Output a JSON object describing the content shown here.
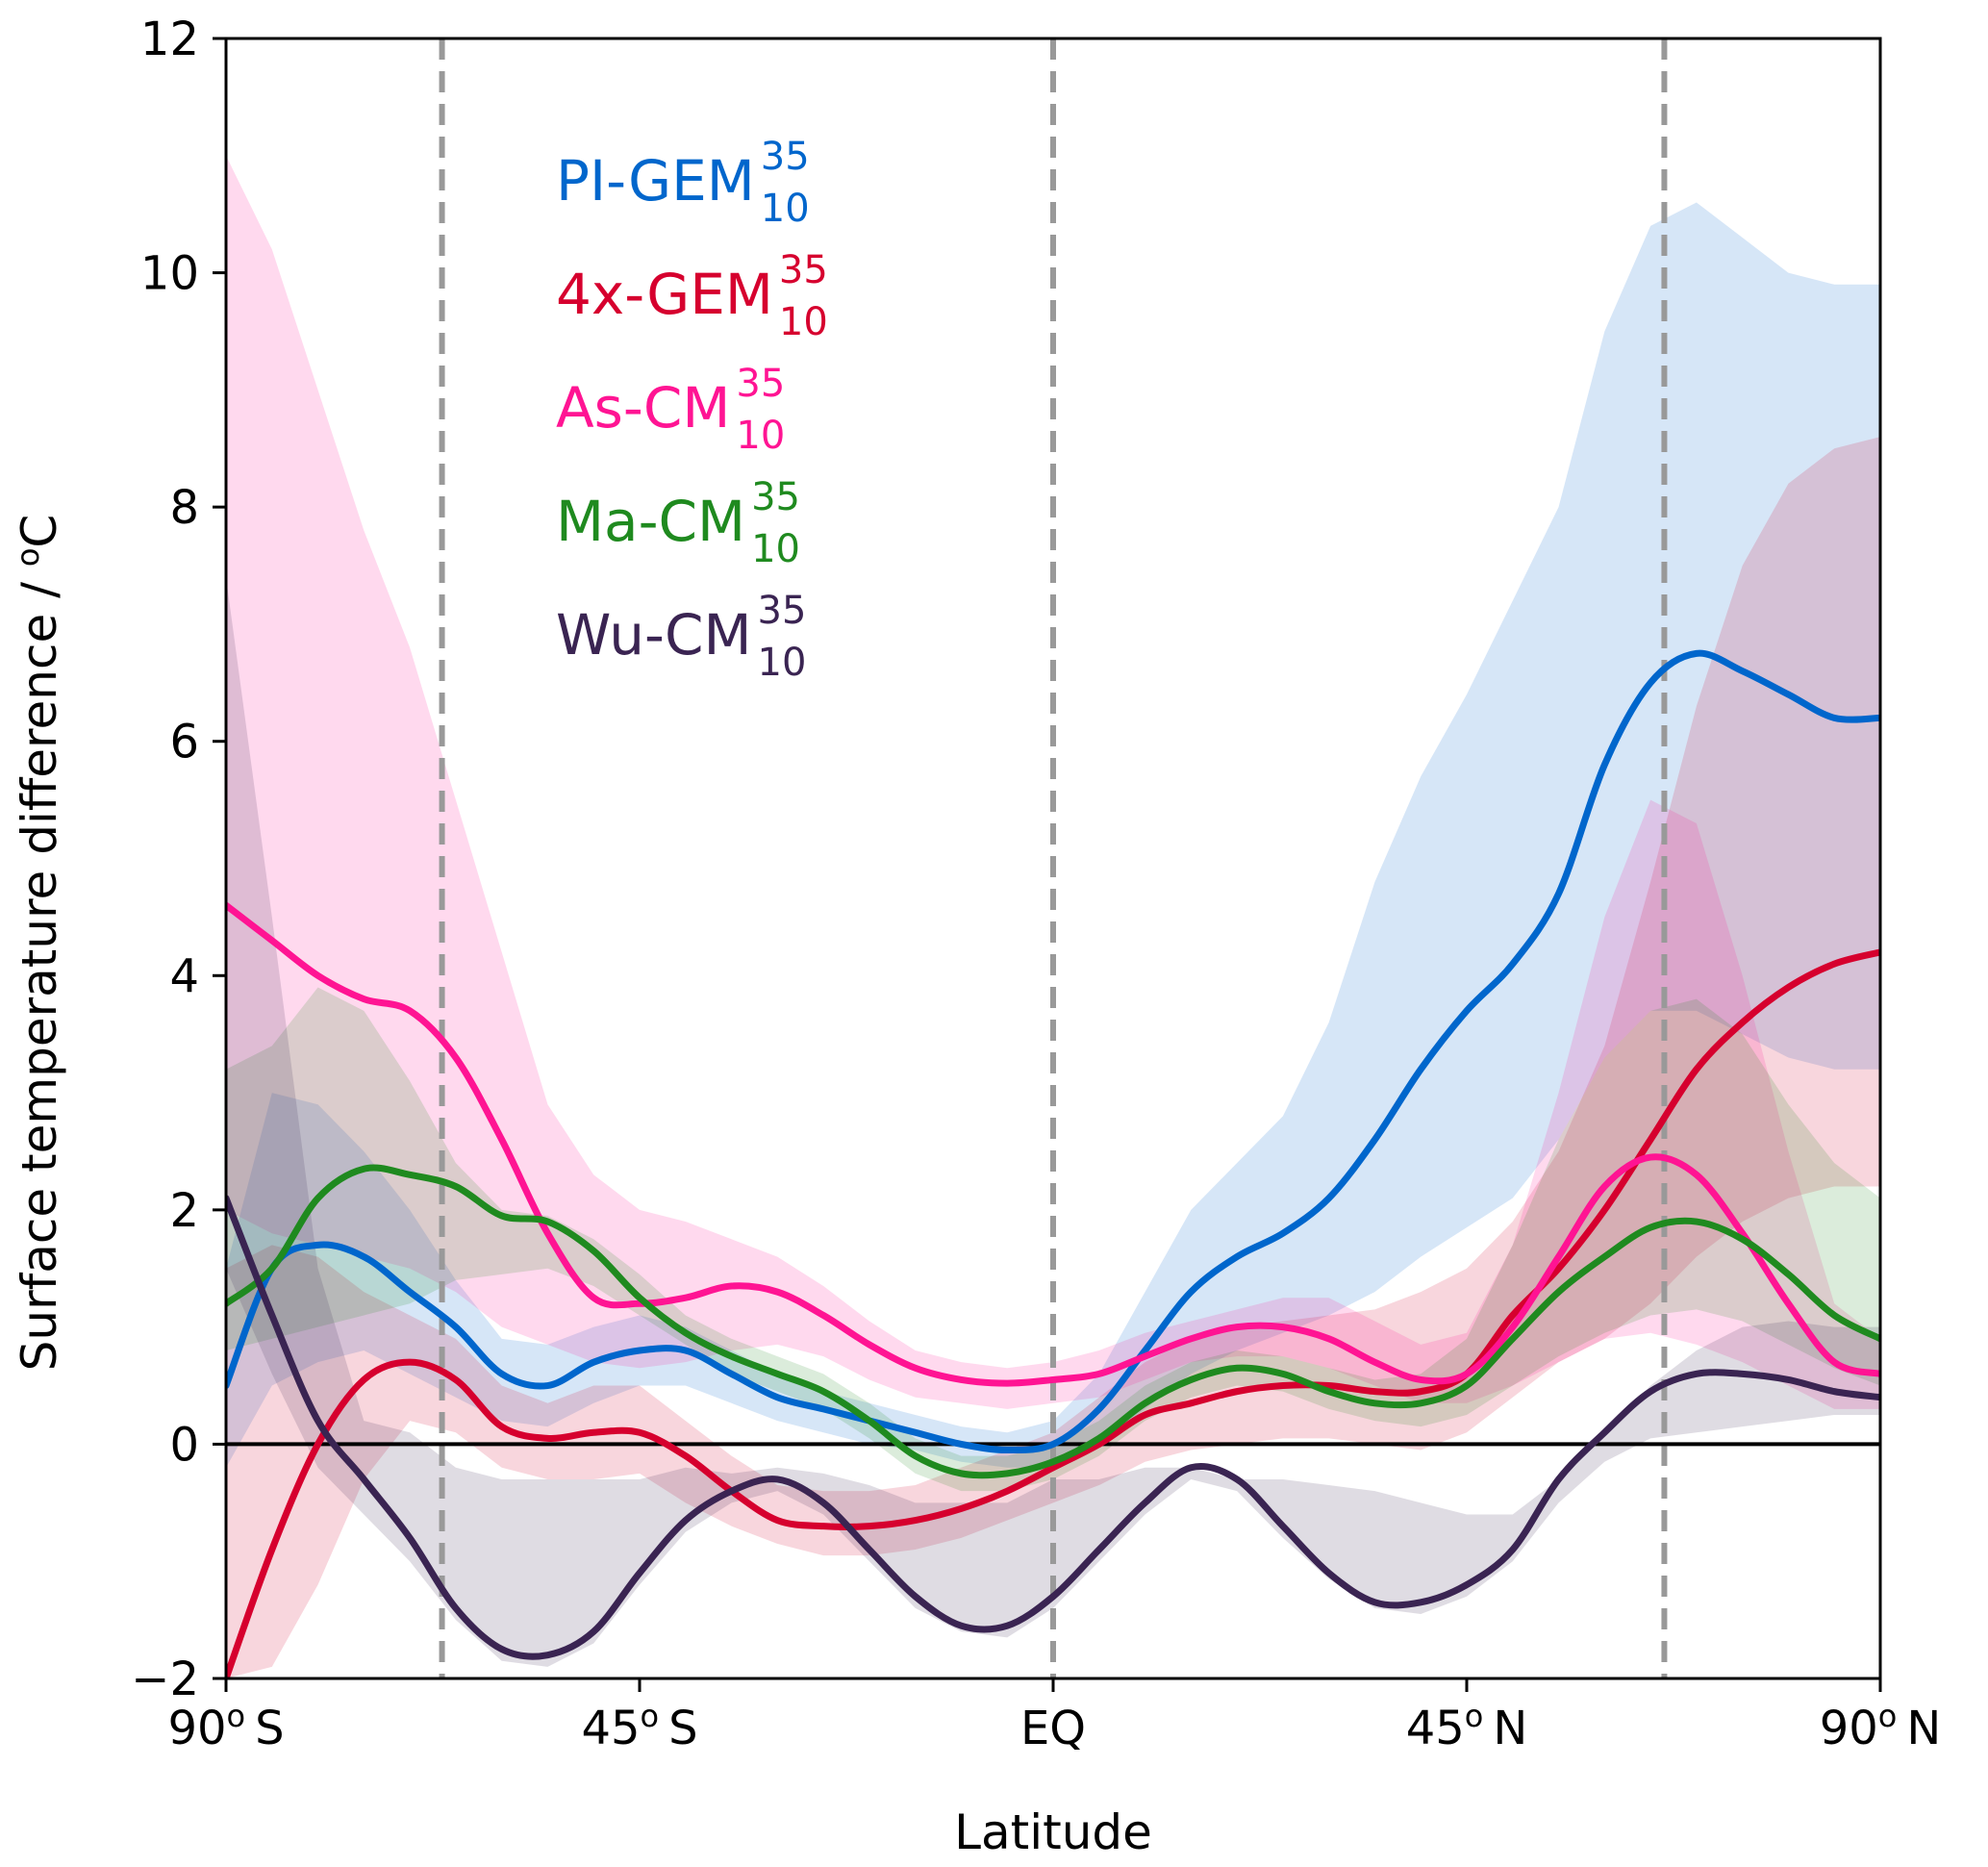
{
  "chart_data": {
    "type": "line",
    "title": "",
    "xlabel": "Latitude",
    "ylabel": "Surface temperature difference / ",
    "ylabel_unit_sup": "o",
    "ylabel_unit": "C",
    "xlim": [
      -90,
      90
    ],
    "ylim": [
      -2,
      12
    ],
    "yticks": [
      -2,
      0,
      2,
      4,
      6,
      8,
      10,
      12
    ],
    "ytick_labels": [
      "−2",
      "0",
      "2",
      "4",
      "6",
      "8",
      "10",
      "12"
    ],
    "xticks": [
      {
        "value": -90,
        "num": "90",
        "deg": "o",
        "hemi": "S"
      },
      {
        "value": -45,
        "num": "45",
        "deg": "o",
        "hemi": "S"
      },
      {
        "value": 0,
        "num": "EQ",
        "deg": "",
        "hemi": ""
      },
      {
        "value": 45,
        "num": "45",
        "deg": "o",
        "hemi": "N"
      },
      {
        "value": 90,
        "num": "90",
        "deg": "o",
        "hemi": "N"
      }
    ],
    "vlines": [
      -66.5,
      0,
      66.5
    ],
    "hline": 0,
    "legend_position": "upper-left inside",
    "x": [
      -90,
      -85,
      -80,
      -75,
      -70,
      -65,
      -60,
      -55,
      -50,
      -45,
      -40,
      -35,
      -30,
      -25,
      -20,
      -15,
      -10,
      -5,
      0,
      5,
      10,
      15,
      20,
      25,
      30,
      35,
      40,
      45,
      50,
      55,
      60,
      65,
      70,
      75,
      80,
      85,
      90
    ],
    "series": [
      {
        "name": "PI-GEM",
        "sup": "35",
        "sub": "10",
        "color": "#0066cc",
        "values": [
          0.5,
          1.5,
          1.7,
          1.6,
          1.3,
          1.0,
          0.6,
          0.5,
          0.7,
          0.8,
          0.8,
          0.6,
          0.4,
          0.3,
          0.2,
          0.1,
          0.0,
          -0.05,
          0.0,
          0.3,
          0.8,
          1.3,
          1.6,
          1.8,
          2.1,
          2.6,
          3.2,
          3.7,
          4.1,
          4.7,
          5.8,
          6.5,
          6.75,
          6.6,
          6.4,
          6.2,
          6.2
        ],
        "upper": [
          1.5,
          3.0,
          2.9,
          2.5,
          2.0,
          1.4,
          0.9,
          0.85,
          1.0,
          1.1,
          1.0,
          0.8,
          0.6,
          0.45,
          0.35,
          0.25,
          0.15,
          0.1,
          0.2,
          0.6,
          1.3,
          2.0,
          2.4,
          2.8,
          3.6,
          4.8,
          5.7,
          6.4,
          7.2,
          8.0,
          9.5,
          10.4,
          10.6,
          10.3,
          10.0,
          9.9,
          9.9
        ],
        "lower": [
          -0.2,
          0.5,
          0.7,
          0.8,
          0.6,
          0.4,
          0.2,
          0.15,
          0.35,
          0.5,
          0.5,
          0.35,
          0.2,
          0.1,
          0.0,
          -0.05,
          -0.15,
          -0.2,
          -0.2,
          0.0,
          0.3,
          0.6,
          0.8,
          0.95,
          1.1,
          1.3,
          1.6,
          1.85,
          2.1,
          2.6,
          3.3,
          3.7,
          3.7,
          3.5,
          3.3,
          3.2,
          3.2
        ]
      },
      {
        "name": "4x-GEM",
        "sup": "35",
        "sub": "10",
        "color": "#d6002e",
        "values": [
          -2.0,
          -0.9,
          0.0,
          0.55,
          0.7,
          0.55,
          0.15,
          0.05,
          0.1,
          0.1,
          -0.1,
          -0.4,
          -0.65,
          -0.7,
          -0.7,
          -0.65,
          -0.55,
          -0.4,
          -0.2,
          0.0,
          0.25,
          0.35,
          0.45,
          0.5,
          0.5,
          0.45,
          0.45,
          0.6,
          1.1,
          1.5,
          2.0,
          2.6,
          3.2,
          3.6,
          3.9,
          4.1,
          4.2
        ],
        "upper": [
          1.5,
          1.7,
          1.6,
          1.3,
          1.1,
          0.9,
          0.5,
          0.35,
          0.5,
          0.5,
          0.2,
          -0.1,
          -0.35,
          -0.4,
          -0.4,
          -0.35,
          -0.2,
          -0.05,
          0.1,
          0.4,
          0.7,
          0.9,
          1.0,
          1.05,
          1.1,
          1.15,
          1.3,
          1.5,
          1.9,
          2.5,
          3.4,
          4.8,
          6.3,
          7.5,
          8.2,
          8.5,
          8.6
        ],
        "lower": [
          -2.0,
          -1.9,
          -1.2,
          -0.3,
          0.2,
          0.1,
          -0.2,
          -0.3,
          -0.3,
          -0.25,
          -0.5,
          -0.7,
          -0.85,
          -0.95,
          -0.95,
          -0.9,
          -0.8,
          -0.65,
          -0.5,
          -0.35,
          -0.15,
          -0.05,
          0.0,
          0.05,
          0.05,
          0.0,
          -0.05,
          0.1,
          0.4,
          0.7,
          0.9,
          1.2,
          1.6,
          1.9,
          2.1,
          2.2,
          2.2
        ]
      },
      {
        "name": "As-CM",
        "sup": "35",
        "sub": "10",
        "color": "#ff1493",
        "values": [
          4.6,
          4.3,
          4.0,
          3.8,
          3.7,
          3.3,
          2.6,
          1.8,
          1.25,
          1.2,
          1.25,
          1.35,
          1.3,
          1.1,
          0.85,
          0.65,
          0.55,
          0.52,
          0.55,
          0.6,
          0.75,
          0.9,
          1.0,
          1.0,
          0.9,
          0.7,
          0.55,
          0.6,
          1.0,
          1.6,
          2.2,
          2.45,
          2.3,
          1.8,
          1.2,
          0.7,
          0.6
        ],
        "upper": [
          11.0,
          10.2,
          9.0,
          7.8,
          6.8,
          5.5,
          4.2,
          2.9,
          2.3,
          2.0,
          1.9,
          1.75,
          1.6,
          1.35,
          1.05,
          0.8,
          0.7,
          0.65,
          0.7,
          0.8,
          0.95,
          1.05,
          1.15,
          1.25,
          1.25,
          1.05,
          0.85,
          0.95,
          1.7,
          3.0,
          4.5,
          5.5,
          5.3,
          4.0,
          2.5,
          1.2,
          0.9
        ],
        "lower": [
          2.0,
          1.8,
          1.7,
          1.6,
          1.5,
          1.3,
          1.0,
          0.85,
          0.7,
          0.65,
          0.7,
          0.8,
          0.85,
          0.75,
          0.55,
          0.4,
          0.35,
          0.3,
          0.35,
          0.4,
          0.55,
          0.7,
          0.75,
          0.75,
          0.65,
          0.5,
          0.35,
          0.35,
          0.5,
          0.7,
          0.9,
          0.95,
          0.85,
          0.7,
          0.5,
          0.3,
          0.3
        ]
      },
      {
        "name": "Ma-CM",
        "sup": "35",
        "sub": "10",
        "color": "#1f8a1f",
        "values": [
          1.2,
          1.5,
          2.1,
          2.35,
          2.3,
          2.2,
          1.95,
          1.9,
          1.65,
          1.25,
          0.95,
          0.75,
          0.6,
          0.45,
          0.2,
          -0.1,
          -0.25,
          -0.25,
          -0.15,
          0.05,
          0.35,
          0.55,
          0.65,
          0.6,
          0.45,
          0.35,
          0.35,
          0.5,
          0.9,
          1.3,
          1.6,
          1.85,
          1.9,
          1.75,
          1.45,
          1.1,
          0.9
        ],
        "upper": [
          3.2,
          3.4,
          3.9,
          3.7,
          3.1,
          2.4,
          2.0,
          1.95,
          1.75,
          1.45,
          1.1,
          0.9,
          0.75,
          0.6,
          0.35,
          0.05,
          -0.1,
          -0.1,
          0.0,
          0.2,
          0.5,
          0.7,
          0.8,
          0.75,
          0.65,
          0.55,
          0.6,
          0.9,
          1.7,
          2.6,
          3.3,
          3.7,
          3.8,
          3.5,
          2.9,
          2.4,
          2.1
        ],
        "lower": [
          0.8,
          0.9,
          1.0,
          1.1,
          1.2,
          1.4,
          1.45,
          1.5,
          1.35,
          1.1,
          0.85,
          0.6,
          0.45,
          0.3,
          0.05,
          -0.25,
          -0.4,
          -0.4,
          -0.3,
          -0.1,
          0.2,
          0.4,
          0.5,
          0.45,
          0.3,
          0.2,
          0.15,
          0.25,
          0.5,
          0.75,
          0.95,
          1.1,
          1.15,
          1.05,
          0.85,
          0.65,
          0.5
        ]
      },
      {
        "name": "Wu-CM",
        "sup": "35",
        "sub": "10",
        "color": "#3a2452",
        "values": [
          2.1,
          1.1,
          0.2,
          -0.3,
          -0.8,
          -1.4,
          -1.75,
          -1.8,
          -1.6,
          -1.1,
          -0.65,
          -0.4,
          -0.3,
          -0.5,
          -0.9,
          -1.3,
          -1.55,
          -1.55,
          -1.3,
          -0.9,
          -0.5,
          -0.2,
          -0.3,
          -0.7,
          -1.1,
          -1.35,
          -1.35,
          -1.2,
          -0.9,
          -0.3,
          0.1,
          0.45,
          0.6,
          0.6,
          0.55,
          0.45,
          0.4
        ],
        "upper": [
          7.4,
          4.5,
          1.5,
          0.2,
          0.1,
          -0.2,
          -0.3,
          -0.3,
          -0.3,
          -0.3,
          -0.2,
          -0.25,
          -0.2,
          -0.25,
          -0.35,
          -0.5,
          -0.5,
          -0.5,
          -0.3,
          -0.3,
          -0.2,
          -0.2,
          -0.3,
          -0.3,
          -0.35,
          -0.4,
          -0.5,
          -0.6,
          -0.6,
          -0.3,
          0.1,
          0.5,
          0.8,
          1.0,
          1.05,
          1.0,
          1.0
        ],
        "lower": [
          1.5,
          0.6,
          -0.2,
          -0.6,
          -1.0,
          -1.5,
          -1.85,
          -1.9,
          -1.7,
          -1.2,
          -0.75,
          -0.5,
          -0.4,
          -0.6,
          -1.0,
          -1.4,
          -1.6,
          -1.65,
          -1.4,
          -1.0,
          -0.6,
          -0.3,
          -0.4,
          -0.8,
          -1.15,
          -1.4,
          -1.45,
          -1.3,
          -1.0,
          -0.5,
          -0.15,
          0.05,
          0.1,
          0.15,
          0.2,
          0.25,
          0.25
        ]
      }
    ]
  }
}
